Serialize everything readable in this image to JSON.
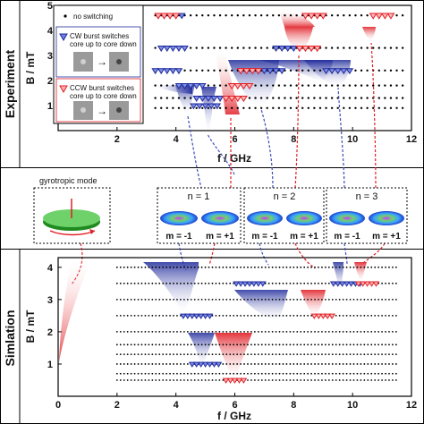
{
  "panels": {
    "experiment": {
      "section_label": "Experiment",
      "ylabel": "B / mT",
      "xlabel": "f / GHz",
      "xticks": [
        "2",
        "4",
        "6",
        "8",
        "10",
        "12"
      ],
      "yticks": [
        "5",
        "4",
        "3",
        "2",
        "1"
      ],
      "legend": {
        "no_switching": "no switching",
        "cw_line1": "CW burst switches",
        "cw_line2": "core up to core down",
        "ccw_line1": "CCW burst switches",
        "ccw_line2": "core up to core down"
      }
    },
    "modes": {
      "gyrotropic_title": "gyrotropic mode",
      "boxes": [
        {
          "title": "n = 1",
          "m_left": "m = -1",
          "m_right": "m = +1"
        },
        {
          "title": "n = 2",
          "m_left": "m = -1",
          "m_right": "m = +1"
        },
        {
          "title": "n = 3",
          "m_left": "m = -1",
          "m_right": "m = +1"
        }
      ]
    },
    "simulation": {
      "section_label": "Simlation",
      "ylabel": "B / mT",
      "xlabel": "f / GHz",
      "xticks": [
        "0",
        "2",
        "4",
        "6",
        "8",
        "10",
        "12"
      ],
      "yticks": [
        "4",
        "3",
        "2",
        "1"
      ]
    }
  },
  "colors": {
    "cw": "#1f2a9a",
    "ccw": "#e01f26",
    "axis": "#000000",
    "connector": "#5a6cc8"
  },
  "chart_data": [
    {
      "type": "scatter",
      "title": "",
      "xlabel": "f / GHz",
      "ylabel": "B / mT",
      "xlim": [
        0,
        12
      ],
      "ylim": [
        0,
        5
      ],
      "legend": "top-left",
      "field_rows_mT": [
        0.9,
        1.3,
        1.8,
        2.4,
        3.3,
        4.6
      ],
      "series": [
        {
          "name": "no switching",
          "marker": "dot"
        },
        {
          "name": "CW burst switches core up to core down",
          "marker": "blue-down-triangle",
          "points": [
            [
              5.0,
              1.0
            ],
            [
              5.1,
              1.3
            ],
            [
              4.5,
              1.8
            ],
            [
              3.7,
              2.4
            ],
            [
              7.2,
              2.4
            ],
            [
              9.5,
              2.4
            ],
            [
              3.9,
              3.3
            ],
            [
              7.8,
              3.3
            ],
            [
              3.8,
              4.6
            ]
          ]
        },
        {
          "name": "CCW burst switches core up to core down",
          "marker": "red-down-triangle",
          "points": [
            [
              5.9,
              1.3
            ],
            [
              6.1,
              1.8
            ],
            [
              6.4,
              2.4
            ],
            [
              8.4,
              3.3
            ],
            [
              8.6,
              4.6
            ],
            [
              10.9,
              4.6
            ],
            [
              3.6,
              4.6
            ]
          ]
        }
      ]
    },
    {
      "type": "scatter",
      "title": "",
      "xlabel": "f / GHz",
      "ylabel": "B / mT",
      "xlim": [
        0,
        12
      ],
      "ylim": [
        0,
        4.3
      ],
      "field_rows_mT": [
        0.5,
        0.7,
        1.0,
        1.3,
        1.6,
        2.0,
        2.5,
        3.0,
        3.5,
        4.0
      ],
      "series": [
        {
          "name": "CW",
          "marker": "blue-down-triangle",
          "points": [
            [
              5.0,
              1.0
            ],
            [
              4.7,
              2.5
            ],
            [
              6.5,
              3.5
            ],
            [
              9.8,
              3.5
            ]
          ]
        },
        {
          "name": "CCW",
          "marker": "red-down-triangle",
          "points": [
            [
              6.0,
              0.5
            ],
            [
              9.0,
              2.5
            ],
            [
              10.5,
              3.5
            ],
            [
              0.1,
              1.0
            ]
          ]
        }
      ]
    }
  ]
}
